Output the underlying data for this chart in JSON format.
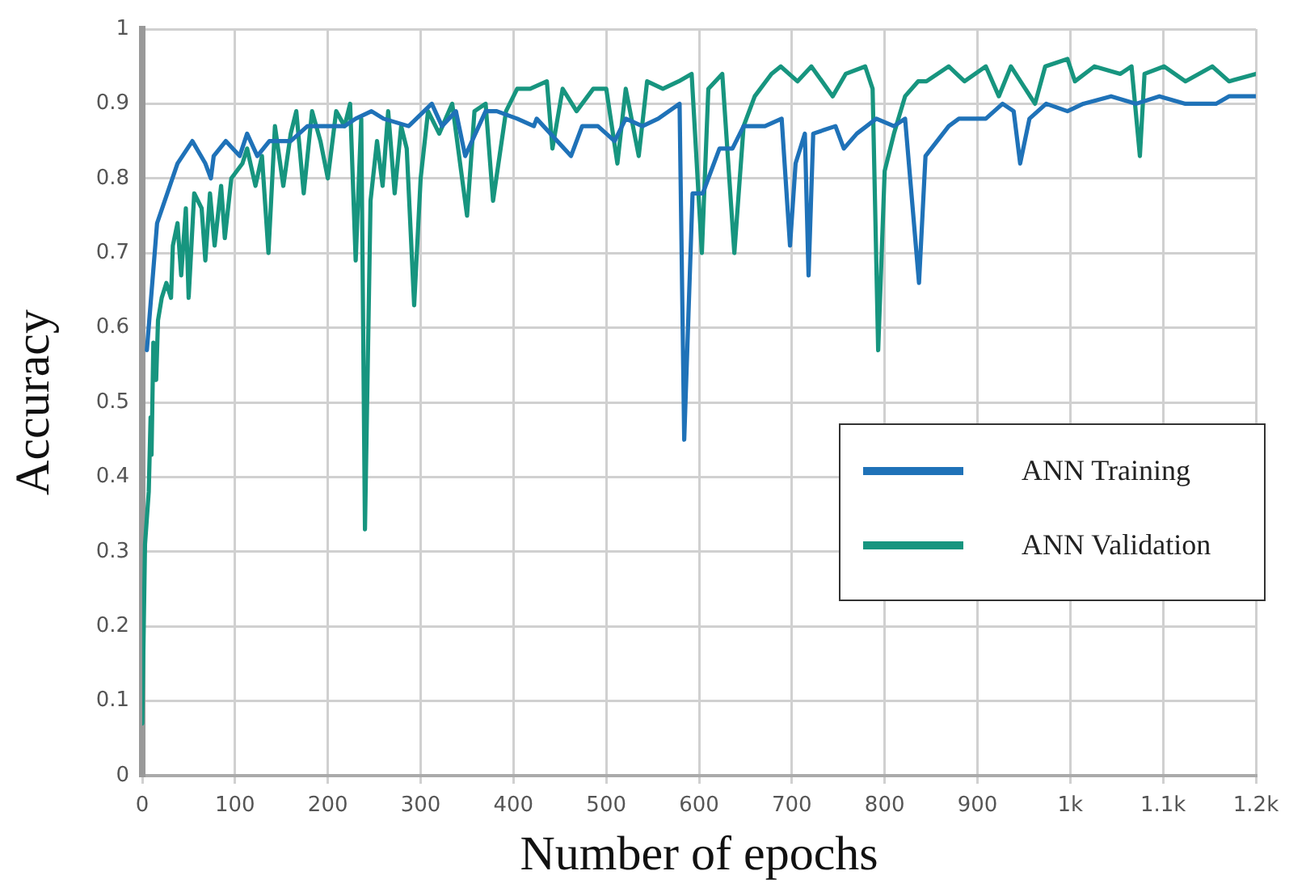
{
  "chart_data": {
    "type": "line",
    "xlabel": "Number of epochs",
    "ylabel": "Accuracy",
    "xlim": [
      0,
      1200
    ],
    "ylim": [
      0,
      1
    ],
    "xticks": [
      0,
      100,
      200,
      300,
      400,
      500,
      600,
      700,
      800,
      900,
      {
        "value": 1000,
        "label": "1k"
      },
      {
        "value": 1100,
        "label": "1.1k"
      },
      {
        "value": 1200,
        "label": "1.2k"
      }
    ],
    "yticks": [
      0,
      0.1,
      0.2,
      0.3,
      0.4,
      0.5,
      0.6,
      0.7,
      0.8,
      0.9,
      1
    ],
    "grid": true,
    "legend": "right",
    "marker": "none",
    "line_style": "solid",
    "series": [
      {
        "name": "ANN Training",
        "color": "#1f72b8",
        "x": [
          5,
          16,
          38,
          54,
          68,
          74,
          77,
          90,
          105,
          113,
          124,
          137,
          160,
          178,
          218,
          230,
          247,
          260,
          287,
          312,
          323,
          338,
          348,
          370,
          382,
          404,
          422,
          425,
          462,
          474,
          491,
          509,
          521,
          539,
          556,
          579,
          584,
          593,
          604,
          622,
          636,
          648,
          671,
          689,
          698,
          704,
          714,
          718,
          723,
          747,
          756,
          770,
          791,
          810,
          822,
          837,
          844,
          869,
          880,
          909,
          927,
          939,
          946,
          956,
          974,
          997,
          1014,
          1044,
          1071,
          1096,
          1124,
          1157,
          1171,
          1200
        ],
        "values": [
          0.57,
          0.74,
          0.82,
          0.85,
          0.82,
          0.8,
          0.83,
          0.85,
          0.83,
          0.86,
          0.83,
          0.85,
          0.85,
          0.87,
          0.87,
          0.88,
          0.89,
          0.88,
          0.87,
          0.9,
          0.87,
          0.89,
          0.83,
          0.89,
          0.89,
          0.88,
          0.87,
          0.88,
          0.83,
          0.87,
          0.87,
          0.85,
          0.88,
          0.87,
          0.88,
          0.9,
          0.45,
          0.78,
          0.78,
          0.84,
          0.84,
          0.87,
          0.87,
          0.88,
          0.71,
          0.82,
          0.86,
          0.67,
          0.86,
          0.87,
          0.84,
          0.86,
          0.88,
          0.87,
          0.88,
          0.66,
          0.83,
          0.87,
          0.88,
          0.88,
          0.9,
          0.89,
          0.82,
          0.88,
          0.9,
          0.89,
          0.9,
          0.91,
          0.9,
          0.91,
          0.9,
          0.9,
          0.91,
          0.91
        ]
      },
      {
        "name": "ANN Validation",
        "color": "#17957f",
        "x": [
          0,
          3,
          7,
          9,
          10,
          12,
          15,
          17,
          21,
          26,
          31,
          33,
          38,
          42,
          47,
          50,
          56,
          64,
          68,
          73,
          78,
          85,
          89,
          96,
          108,
          113,
          122,
          129,
          136,
          143,
          152,
          160,
          166,
          174,
          183,
          192,
          200,
          209,
          218,
          224,
          230,
          236,
          240,
          246,
          253,
          259,
          265,
          272,
          279,
          285,
          293,
          300,
          308,
          320,
          334,
          350,
          358,
          370,
          378,
          392,
          404,
          418,
          436,
          442,
          453,
          468,
          486,
          500,
          512,
          521,
          535,
          544,
          561,
          578,
          592,
          603,
          610,
          625,
          638,
          648,
          660,
          678,
          688,
          706,
          721,
          744,
          758,
          779,
          787,
          793,
          800,
          810,
          822,
          836,
          845,
          869,
          886,
          909,
          923,
          936,
          962,
          973,
          997,
          1005,
          1026,
          1054,
          1066,
          1075,
          1080,
          1101,
          1124,
          1153,
          1171,
          1200
        ],
        "values": [
          0.07,
          0.31,
          0.38,
          0.48,
          0.43,
          0.58,
          0.53,
          0.61,
          0.64,
          0.66,
          0.64,
          0.71,
          0.74,
          0.67,
          0.76,
          0.64,
          0.78,
          0.76,
          0.69,
          0.78,
          0.71,
          0.79,
          0.72,
          0.8,
          0.82,
          0.84,
          0.79,
          0.83,
          0.7,
          0.87,
          0.79,
          0.86,
          0.89,
          0.78,
          0.89,
          0.85,
          0.8,
          0.89,
          0.87,
          0.9,
          0.69,
          0.88,
          0.33,
          0.77,
          0.85,
          0.79,
          0.89,
          0.78,
          0.87,
          0.84,
          0.63,
          0.8,
          0.89,
          0.86,
          0.9,
          0.75,
          0.89,
          0.9,
          0.77,
          0.89,
          0.92,
          0.92,
          0.93,
          0.84,
          0.92,
          0.89,
          0.92,
          0.92,
          0.82,
          0.92,
          0.83,
          0.93,
          0.92,
          0.93,
          0.94,
          0.7,
          0.92,
          0.94,
          0.7,
          0.87,
          0.91,
          0.94,
          0.95,
          0.93,
          0.95,
          0.91,
          0.94,
          0.95,
          0.92,
          0.57,
          0.81,
          0.86,
          0.91,
          0.93,
          0.93,
          0.95,
          0.93,
          0.95,
          0.91,
          0.95,
          0.9,
          0.95,
          0.96,
          0.93,
          0.95,
          0.94,
          0.95,
          0.83,
          0.94,
          0.95,
          0.93,
          0.95,
          0.93,
          0.94
        ]
      }
    ]
  }
}
